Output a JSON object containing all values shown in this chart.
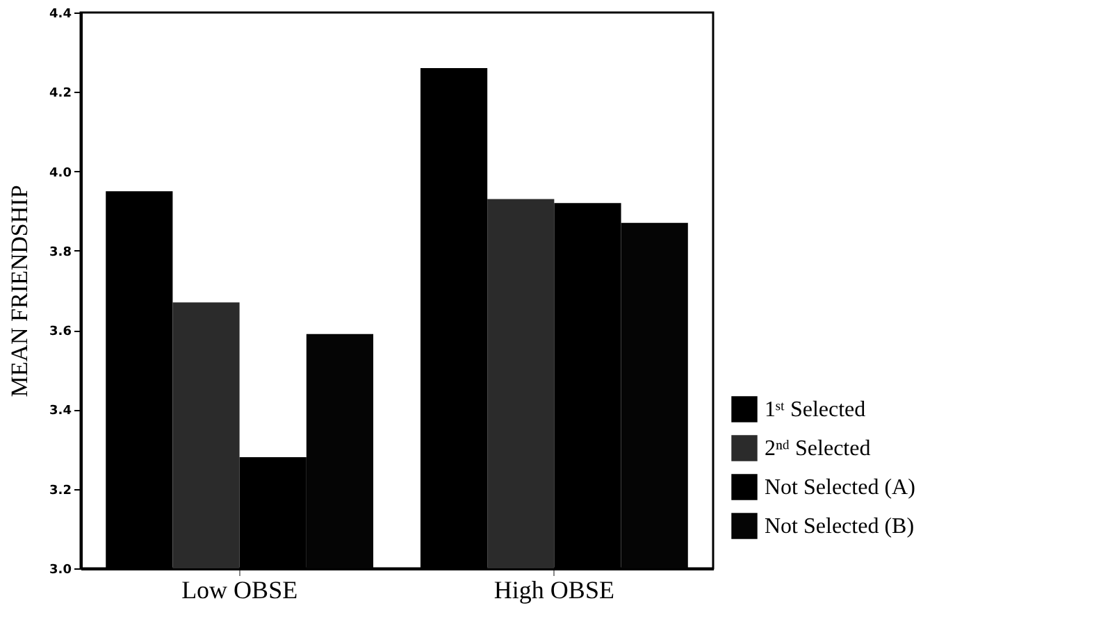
{
  "chart_data": {
    "type": "bar",
    "ylabel": "MEAN FRIENDSHIP",
    "categories": [
      "Low OBSE",
      "High OBSE"
    ],
    "series": [
      {
        "name": "1ˢᵗ Selected",
        "color": "#000000",
        "values": [
          3.95,
          4.26
        ]
      },
      {
        "name": "2ⁿᵈ Selected",
        "color": "#2b2b2b",
        "values": [
          3.67,
          3.93
        ]
      },
      {
        "name": "Not Selected (A)",
        "color": "#000000",
        "values": [
          3.28,
          3.92
        ]
      },
      {
        "name": "Not Selected (B)",
        "color": "#050505",
        "values": [
          3.59,
          3.87
        ]
      }
    ],
    "ylim": [
      3.0,
      4.4
    ],
    "yticks": [
      {
        "value": 3,
        "label": "3.0"
      },
      3.2,
      3.4,
      3.6,
      3.8,
      {
        "value": 4,
        "label": "4.0"
      },
      4.2,
      4.4
    ],
    "grid": false,
    "legend": "right"
  }
}
